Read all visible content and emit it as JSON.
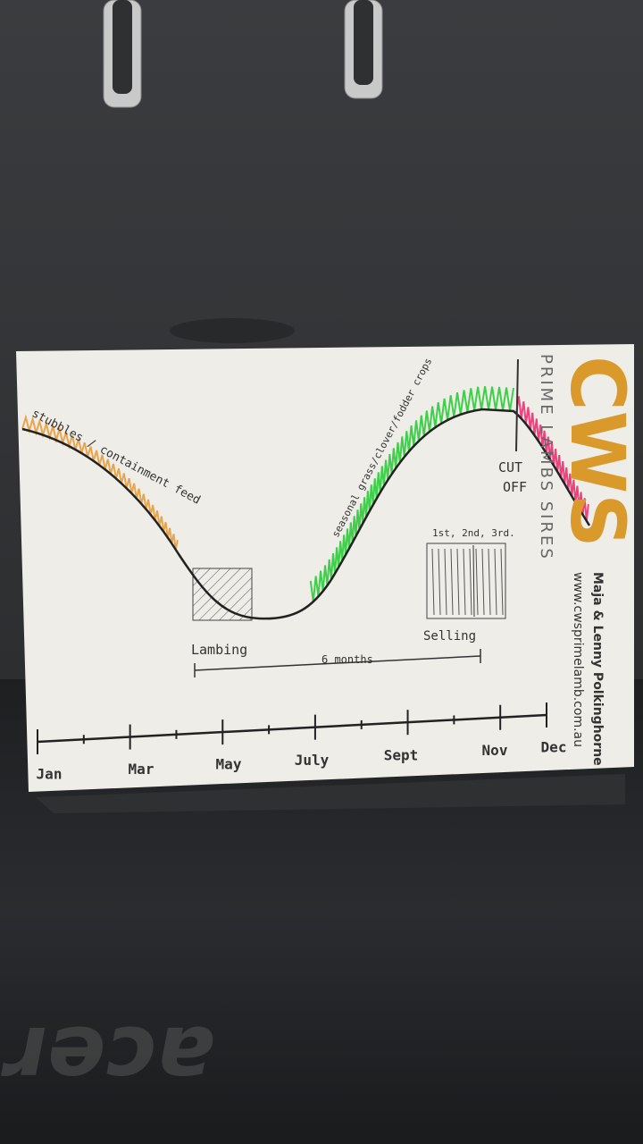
{
  "card": {
    "annotations": {
      "feed": "stubbles / containment feed",
      "crops": "seasonal grass/clover/fodder crops",
      "cutoff": "CUT OFF",
      "sales": "1st, 2nd, 3rd.",
      "selling": "Selling",
      "lambing": "Lambing",
      "span": "6 months"
    },
    "months": [
      "Jan",
      "Mar",
      "May",
      "July",
      "Sept",
      "Nov",
      "Dec"
    ],
    "brand": {
      "logo": "CWS",
      "tagline": "PRIME LAMBS SIRES",
      "owners": "Maja & Lenny Polkinghorne",
      "website": "www.cwsprimelamb.com.au"
    }
  },
  "laptop_logo": "acer"
}
